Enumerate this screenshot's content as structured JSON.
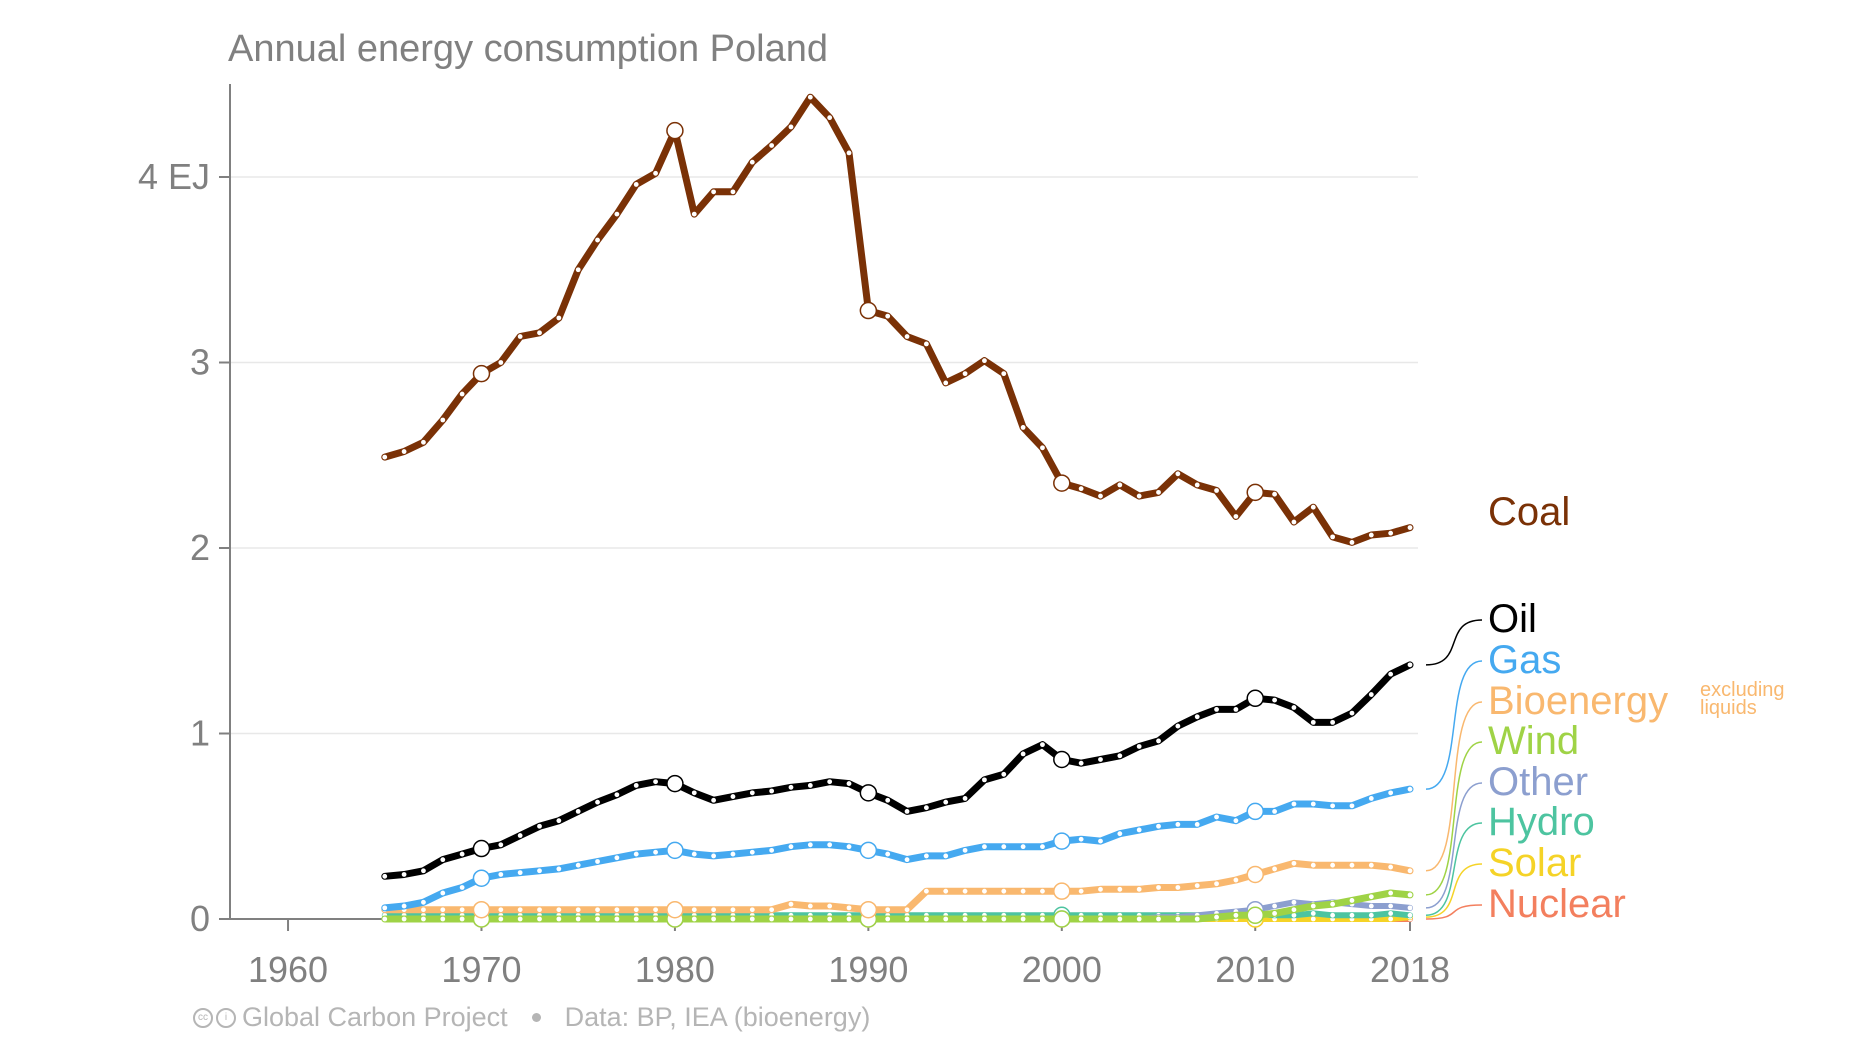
{
  "title": "Annual energy consumption Poland",
  "footer": {
    "source": "Global Carbon Project",
    "data": "Data: BP, IEA (bioenergy)"
  },
  "chart_data": {
    "type": "line",
    "title": "Annual energy consumption Poland",
    "xlim": [
      1957,
      2018
    ],
    "ylim": [
      0,
      4.5
    ],
    "x_ticks": [
      1960,
      1970,
      1980,
      1990,
      2000,
      2010,
      2018
    ],
    "y_ticks": [
      {
        "value": 0,
        "label": "0"
      },
      {
        "value": 1,
        "label": "1"
      },
      {
        "value": 2,
        "label": "2"
      },
      {
        "value": 3,
        "label": "3"
      },
      {
        "value": 4,
        "label": "4 EJ"
      }
    ],
    "grid": true,
    "x": [
      1965,
      1966,
      1967,
      1968,
      1969,
      1970,
      1971,
      1972,
      1973,
      1974,
      1975,
      1976,
      1977,
      1978,
      1979,
      1980,
      1981,
      1982,
      1983,
      1984,
      1985,
      1986,
      1987,
      1988,
      1989,
      1990,
      1991,
      1992,
      1993,
      1994,
      1995,
      1996,
      1997,
      1998,
      1999,
      2000,
      2001,
      2002,
      2003,
      2004,
      2005,
      2006,
      2007,
      2008,
      2009,
      2010,
      2011,
      2012,
      2013,
      2014,
      2015,
      2016,
      2017,
      2018
    ],
    "highlight_years": [
      1970,
      1980,
      1990,
      2000,
      2010
    ],
    "series": [
      {
        "name": "Coal",
        "color": "#7a3106",
        "width": 7,
        "values": [
          2.49,
          2.52,
          2.57,
          2.69,
          2.83,
          2.94,
          3.0,
          3.14,
          3.16,
          3.24,
          3.5,
          3.66,
          3.8,
          3.96,
          4.02,
          4.25,
          3.8,
          3.92,
          3.92,
          4.08,
          4.17,
          4.27,
          4.43,
          4.32,
          4.13,
          3.28,
          3.25,
          3.14,
          3.1,
          2.89,
          2.94,
          3.01,
          2.94,
          2.65,
          2.54,
          2.35,
          2.32,
          2.28,
          2.34,
          2.28,
          2.3,
          2.4,
          2.34,
          2.31,
          2.17,
          2.3,
          2.29,
          2.14,
          2.22,
          2.06,
          2.03,
          2.07,
          2.08,
          2.11
        ]
      },
      {
        "name": "Oil",
        "color": "#000000",
        "width": 7,
        "values": [
          0.23,
          0.24,
          0.26,
          0.32,
          0.35,
          0.38,
          0.4,
          0.45,
          0.5,
          0.53,
          0.58,
          0.63,
          0.67,
          0.72,
          0.74,
          0.73,
          0.68,
          0.64,
          0.66,
          0.68,
          0.69,
          0.71,
          0.72,
          0.74,
          0.73,
          0.68,
          0.64,
          0.58,
          0.6,
          0.63,
          0.65,
          0.75,
          0.78,
          0.89,
          0.94,
          0.86,
          0.84,
          0.86,
          0.88,
          0.93,
          0.96,
          1.04,
          1.09,
          1.13,
          1.13,
          1.19,
          1.18,
          1.14,
          1.06,
          1.06,
          1.11,
          1.21,
          1.32,
          1.37
        ]
      },
      {
        "name": "Gas",
        "color": "#45a9f0",
        "width": 7,
        "values": [
          0.06,
          0.07,
          0.09,
          0.14,
          0.17,
          0.22,
          0.24,
          0.25,
          0.26,
          0.27,
          0.29,
          0.31,
          0.33,
          0.35,
          0.36,
          0.37,
          0.35,
          0.34,
          0.35,
          0.36,
          0.37,
          0.39,
          0.4,
          0.4,
          0.39,
          0.37,
          0.35,
          0.32,
          0.34,
          0.34,
          0.37,
          0.39,
          0.39,
          0.39,
          0.39,
          0.42,
          0.43,
          0.42,
          0.46,
          0.48,
          0.5,
          0.51,
          0.51,
          0.55,
          0.53,
          0.58,
          0.58,
          0.62,
          0.62,
          0.61,
          0.61,
          0.65,
          0.68,
          0.7
        ]
      },
      {
        "name": "Bioenergy",
        "note": "excluding liquids",
        "color": "#f9b86f",
        "width": 7,
        "values": [
          0.05,
          0.05,
          0.05,
          0.05,
          0.05,
          0.05,
          0.05,
          0.05,
          0.05,
          0.05,
          0.05,
          0.05,
          0.05,
          0.05,
          0.05,
          0.05,
          0.05,
          0.05,
          0.05,
          0.05,
          0.05,
          0.08,
          0.07,
          0.07,
          0.06,
          0.05,
          0.05,
          0.05,
          0.15,
          0.15,
          0.15,
          0.15,
          0.15,
          0.15,
          0.15,
          0.15,
          0.15,
          0.16,
          0.16,
          0.16,
          0.17,
          0.17,
          0.18,
          0.19,
          0.21,
          0.24,
          0.27,
          0.3,
          0.29,
          0.29,
          0.29,
          0.29,
          0.28,
          0.26
        ]
      },
      {
        "name": "Wind",
        "color": "#9fd346",
        "width": 7,
        "values": [
          0,
          0,
          0,
          0,
          0,
          0,
          0,
          0,
          0,
          0,
          0,
          0,
          0,
          0,
          0,
          0,
          0,
          0,
          0,
          0,
          0,
          0,
          0,
          0,
          0,
          0,
          0,
          0,
          0,
          0,
          0,
          0,
          0,
          0,
          0,
          0,
          0,
          0,
          0,
          0,
          0,
          0,
          0,
          0.01,
          0.02,
          0.02,
          0.03,
          0.05,
          0.07,
          0.08,
          0.1,
          0.12,
          0.14,
          0.13
        ]
      },
      {
        "name": "Other",
        "color": "#8c9fcf",
        "width": 6,
        "values": [
          0,
          0,
          0,
          0,
          0,
          0,
          0,
          0,
          0,
          0,
          0,
          0,
          0,
          0,
          0,
          0,
          0,
          0,
          0,
          0,
          0,
          0,
          0,
          0,
          0,
          0,
          0,
          0,
          0,
          0,
          0,
          0,
          0,
          0,
          0,
          0,
          0,
          0,
          0,
          0,
          0.01,
          0.01,
          0.02,
          0.03,
          0.04,
          0.05,
          0.07,
          0.09,
          0.08,
          0.09,
          0.08,
          0.07,
          0.07,
          0.06
        ]
      },
      {
        "name": "Hydro",
        "color": "#4dc4a0",
        "width": 6,
        "values": [
          0.02,
          0.02,
          0.02,
          0.02,
          0.02,
          0.02,
          0.02,
          0.02,
          0.02,
          0.02,
          0.02,
          0.02,
          0.02,
          0.02,
          0.02,
          0.02,
          0.02,
          0.02,
          0.02,
          0.02,
          0.02,
          0.02,
          0.02,
          0.02,
          0.02,
          0.02,
          0.02,
          0.02,
          0.02,
          0.02,
          0.02,
          0.02,
          0.02,
          0.02,
          0.02,
          0.02,
          0.02,
          0.02,
          0.02,
          0.02,
          0.02,
          0.02,
          0.02,
          0.02,
          0.02,
          0.03,
          0.02,
          0.02,
          0.03,
          0.02,
          0.02,
          0.02,
          0.03,
          0.02
        ]
      },
      {
        "name": "Solar",
        "color": "#f5d327",
        "width": 6,
        "values": [
          0,
          0,
          0,
          0,
          0,
          0,
          0,
          0,
          0,
          0,
          0,
          0,
          0,
          0,
          0,
          0,
          0,
          0,
          0,
          0,
          0,
          0,
          0,
          0,
          0,
          0,
          0,
          0,
          0,
          0,
          0,
          0,
          0,
          0,
          0,
          0,
          0,
          0,
          0,
          0,
          0,
          0,
          0,
          0,
          0,
          0,
          0,
          0,
          0,
          0,
          0,
          0,
          0,
          0.01
        ]
      },
      {
        "name": "Nuclear",
        "color": "#f37f5e",
        "width": 6,
        "values": [
          0,
          0,
          0,
          0,
          0,
          0,
          0,
          0,
          0,
          0,
          0,
          0,
          0,
          0,
          0,
          0,
          0,
          0,
          0,
          0,
          0,
          0,
          0,
          0,
          0,
          0,
          0,
          0,
          0,
          0,
          0,
          0,
          0,
          0,
          0,
          0,
          0,
          0,
          0,
          0,
          0,
          0,
          0,
          0,
          0,
          0,
          0,
          0,
          0,
          0,
          0,
          0,
          0,
          0
        ]
      }
    ],
    "labels": [
      {
        "series": "Coal",
        "text": "Coal",
        "color": "#7a3106"
      },
      {
        "series": "Oil",
        "text": "Oil",
        "color": "#000000"
      },
      {
        "series": "Gas",
        "text": "Gas",
        "color": "#45a9f0"
      },
      {
        "series": "Bioenergy",
        "text": "Bioenergy",
        "color": "#f9b86f",
        "note": "excluding liquids"
      },
      {
        "series": "Wind",
        "text": "Wind",
        "color": "#9fd346"
      },
      {
        "series": "Other",
        "text": "Other",
        "color": "#8c9fcf"
      },
      {
        "series": "Hydro",
        "text": "Hydro",
        "color": "#4dc4a0"
      },
      {
        "series": "Solar",
        "text": "Solar",
        "color": "#f5d327"
      },
      {
        "series": "Nuclear",
        "text": "Nuclear",
        "color": "#f37f5e"
      }
    ]
  }
}
